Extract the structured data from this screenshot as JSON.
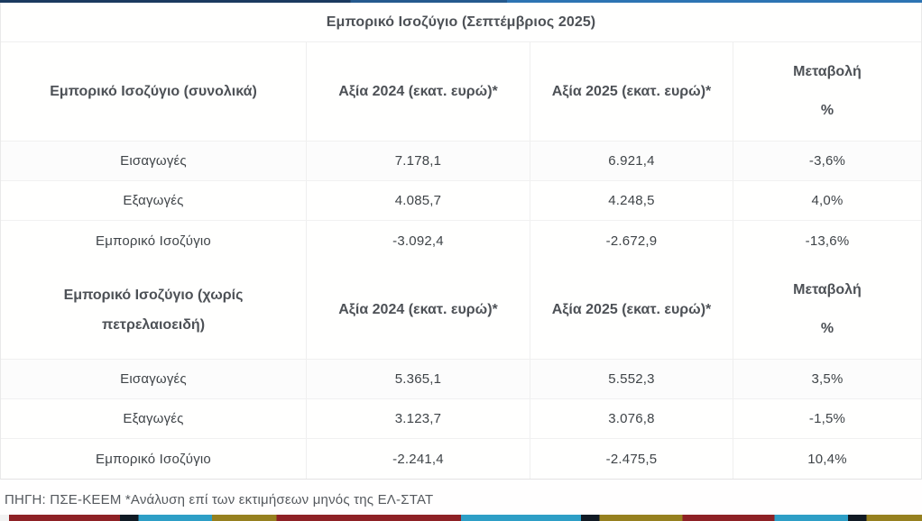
{
  "title": "Εμπορικό Ισοζύγιο (Σεπτέμβριος 2025)",
  "columns": {
    "value2024": "Αξία 2024 (εκατ. ευρώ)*",
    "value2025": "Αξία 2025 (εκατ. ευρώ)*",
    "change_line1": "Μεταβολή",
    "change_line2": "%"
  },
  "sections": [
    {
      "label": "Εμπορικό Ισοζύγιο (συνολικά)",
      "rows": [
        {
          "label": "Εισαγωγές",
          "v2024": "7.178,1",
          "v2025": "6.921,4",
          "change": "-3,6%"
        },
        {
          "label": "Εξαγωγές",
          "v2024": "4.085,7",
          "v2025": "4.248,5",
          "change": "4,0%"
        },
        {
          "label": "Εμπορικό Ισοζύγιο",
          "v2024": "-3.092,4",
          "v2025": "-2.672,9",
          "change": "-13,6%"
        }
      ]
    },
    {
      "label": "Εμπορικό Ισοζύγιο (χωρίς πετρελαιοειδή)",
      "rows": [
        {
          "label": "Εισαγωγές",
          "v2024": "5.365,1",
          "v2025": "5.552,3",
          "change": "3,5%"
        },
        {
          "label": "Εξαγωγές",
          "v2024": "3.123,7",
          "v2025": "3.076,8",
          "change": "-1,5%"
        },
        {
          "label": "Εμπορικό Ισοζύγιο",
          "v2024": "-2.241,4",
          "v2025": "-2.475,5",
          "change": "10,4%"
        }
      ]
    }
  ],
  "footer": "ΠΗΓΗ: ΠΣΕ-ΚΕΕΜ *Ανάλυση επί των εκτιμήσεων μηνός της ΕΛ-ΣΤΑΤ",
  "colors": {
    "top_bar_navy": "#1b3a5f",
    "top_bar_blue": "#2d74b3",
    "bottom_bar_maroon": "#8e2125",
    "bottom_bar_teal": "#2d9ec6",
    "bottom_bar_olive": "#96801f",
    "bottom_bar_dark": "#111a24",
    "header_text": "#4d5156",
    "data_text": "#3f4448",
    "grid_line": "#efefef"
  },
  "chart_data": [
    {
      "type": "table",
      "title": "Εμπορικό Ισοζύγιο (Σεπτέμβριος 2025)",
      "section": "Εμπορικό Ισοζύγιο (συνολικά)",
      "columns": [
        "Εμπορικό Ισοζύγιο (συνολικά)",
        "Αξία 2024 (εκατ. ευρώ)*",
        "Αξία 2025 (εκατ. ευρώ)*",
        "Μεταβολή %"
      ],
      "rows": [
        [
          "Εισαγωγές",
          7178.1,
          6921.4,
          -3.6
        ],
        [
          "Εξαγωγές",
          4085.7,
          4248.5,
          4.0
        ],
        [
          "Εμπορικό Ισοζύγιο",
          -3092.4,
          -2672.9,
          -13.6
        ]
      ]
    },
    {
      "type": "table",
      "title": "Εμπορικό Ισοζύγιο (Σεπτέμβριος 2025)",
      "section": "Εμπορικό Ισοζύγιο (χωρίς πετρελαιοειδή)",
      "columns": [
        "Εμπορικό Ισοζύγιο (χωρίς πετρελαιοειδή)",
        "Αξία 2024 (εκατ. ευρώ)*",
        "Αξία 2025 (εκατ. ευρώ)*",
        "Μεταβολή %"
      ],
      "rows": [
        [
          "Εισαγωγές",
          5365.1,
          5552.3,
          3.5
        ],
        [
          "Εξαγωγές",
          3123.7,
          3076.8,
          -1.5
        ],
        [
          "Εμπορικό Ισοζύγιο",
          -2241.4,
          -2475.5,
          10.4
        ]
      ]
    }
  ]
}
